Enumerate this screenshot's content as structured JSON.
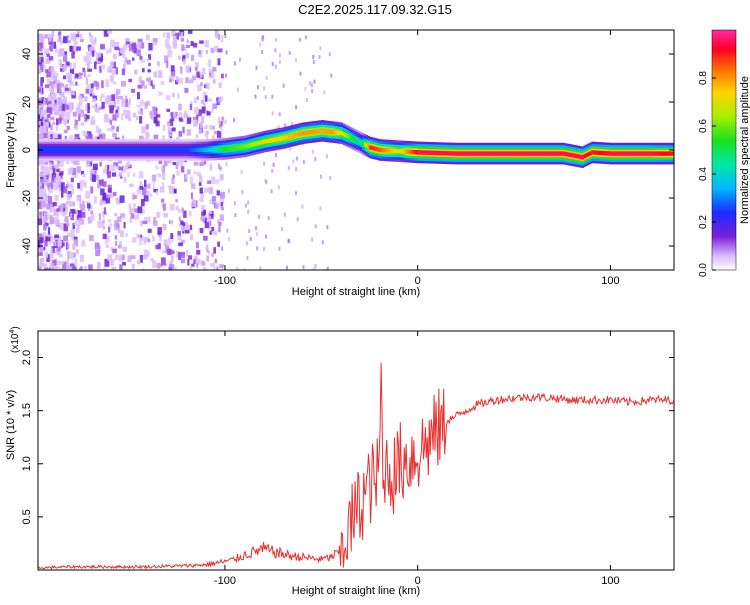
{
  "figure": {
    "title": "C2E2.2025.117.09.32.G15"
  },
  "colors": {
    "series": "#e8302e",
    "trace": "#d40000"
  },
  "chart_data": [
    {
      "type": "heatmap",
      "title": "",
      "xlabel": "Height of straight line (km)",
      "ylabel": "Frequency (Hz)",
      "xlim": [
        -197,
        133
      ],
      "ylim": [
        -50,
        50
      ],
      "xticks": [
        -100,
        0,
        100
      ],
      "yticks": [
        -40,
        -20,
        0,
        20,
        40
      ],
      "colorbar": {
        "label": "Normalized spectral amplitude",
        "range": [
          0,
          1
        ],
        "ticks": [
          "0.0",
          "0.2",
          "0.4",
          "0.6",
          "0.8"
        ],
        "tick_values": [
          0,
          0.2,
          0.4,
          0.6,
          0.8
        ],
        "colormap": "rainbow-white-low"
      },
      "ridge_frequency": {
        "x": [
          -197,
          -150,
          -120,
          -110,
          -100,
          -90,
          -80,
          -70,
          -60,
          -55,
          -50,
          -45,
          -40,
          -35,
          -30,
          -25,
          -20,
          -10,
          0,
          20,
          40,
          60,
          75,
          85,
          90,
          100,
          120,
          133
        ],
        "y": [
          0,
          0,
          0,
          0,
          0.5,
          1.5,
          3.5,
          5,
          7,
          7.5,
          8,
          7.5,
          7,
          5,
          3,
          1,
          0,
          -0.5,
          -1,
          -1.5,
          -1.5,
          -1.5,
          -1.5,
          -3,
          -1,
          -1.5,
          -1.5,
          -1.5
        ],
        "amplitude": [
          0.25,
          0.25,
          0.25,
          0.35,
          0.55,
          0.6,
          0.7,
          0.75,
          0.8,
          0.8,
          0.78,
          0.8,
          0.7,
          0.55,
          0.45,
          0.9,
          0.85,
          0.7,
          0.95,
          0.95,
          0.95,
          0.95,
          0.95,
          0.95,
          0.9,
          0.95,
          0.95,
          0.9
        ]
      }
    },
    {
      "type": "line",
      "title": "",
      "xlabel": "Height of straight line (km)",
      "ylabel": "SNR (10 * v/v)",
      "y_multiplier": "(x10",
      "y_multiplier_exp": "4",
      "y_multiplier_close": ")",
      "xlim": [
        -197,
        133
      ],
      "ylim": [
        0,
        2.25
      ],
      "xticks": [
        -100,
        0,
        100
      ],
      "yticks": [
        0.5,
        1.0,
        1.5,
        2.0
      ],
      "series": [
        {
          "x": [
            -197,
            -180,
            -160,
            -140,
            -120,
            -110,
            -100,
            -95,
            -90,
            -85,
            -80,
            -75,
            -70,
            -65,
            -60,
            -55,
            -50,
            -45,
            -40,
            -38,
            -35,
            -32,
            -30,
            -28,
            -25,
            -22,
            -20,
            -19,
            -18,
            -17,
            -15,
            -12,
            -10,
            -5,
            0,
            5,
            10,
            15,
            20,
            25,
            30,
            40,
            50,
            60,
            70,
            80,
            90,
            100,
            110,
            120,
            133
          ],
          "y": [
            0.02,
            0.03,
            0.03,
            0.03,
            0.04,
            0.05,
            0.08,
            0.1,
            0.14,
            0.17,
            0.2,
            0.17,
            0.15,
            0.13,
            0.12,
            0.11,
            0.1,
            0.12,
            0.18,
            0.3,
            0.4,
            0.55,
            0.6,
            0.7,
            0.8,
            0.85,
            0.9,
            1.9,
            0.7,
            1.0,
            0.95,
            0.9,
            1.0,
            1.05,
            1.1,
            1.2,
            1.3,
            1.4,
            1.45,
            1.5,
            1.55,
            1.6,
            1.62,
            1.63,
            1.62,
            1.6,
            1.6,
            1.6,
            1.58,
            1.6,
            1.6
          ]
        }
      ]
    }
  ]
}
